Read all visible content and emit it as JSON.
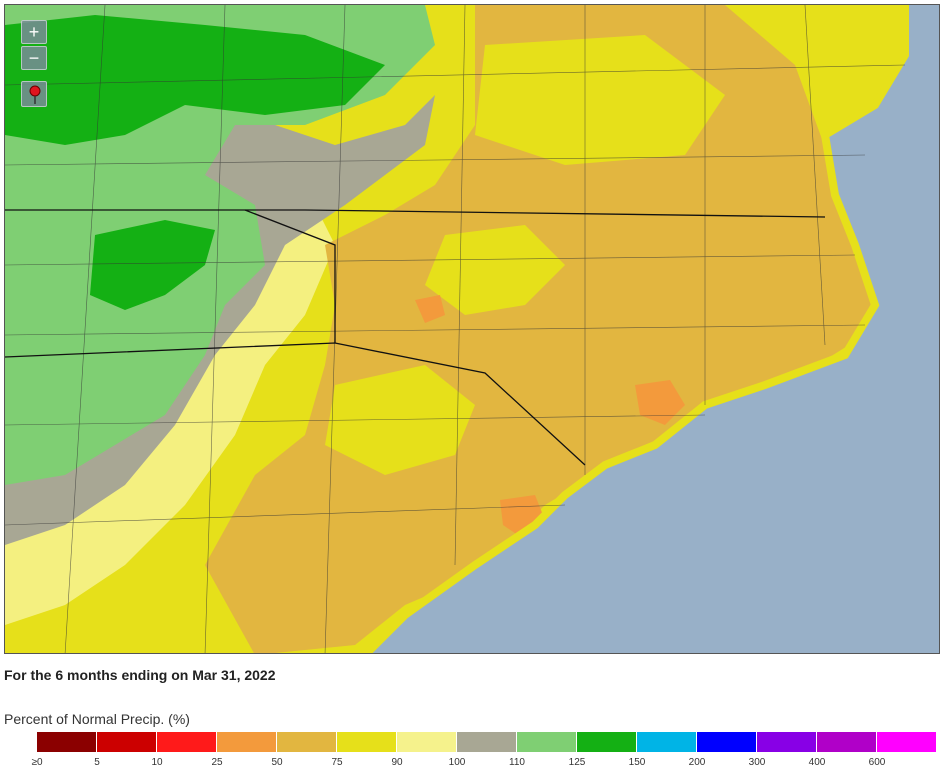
{
  "map": {
    "zoom_in_label": "+",
    "zoom_out_label": "−",
    "colors": {
      "ocean": "#98b0c8",
      "p0": "#8b0000",
      "p5": "#cc0000",
      "p10": "#ff1a1a",
      "p25": "#f39a3c",
      "p50": "#e2b640",
      "p75": "#e6e01a",
      "p90": "#f5f28c",
      "p100": "#a8a794",
      "p110": "#7fcf73",
      "p125": "#14b014",
      "p150": "#00b4e6",
      "p200": "#0000ff",
      "p300": "#8800e6",
      "p400": "#b000c8",
      "p600": "#ff00ff"
    }
  },
  "caption": "For the 6 months ending on Mar 31, 2022",
  "legend": {
    "title": "Percent of Normal Precip. (%)",
    "swatches": [
      "#8b0000",
      "#cc0000",
      "#ff1a1a",
      "#f39a3c",
      "#e2b640",
      "#e6e01a",
      "#f5f28c",
      "#a8a794",
      "#7fcf73",
      "#14b014",
      "#00b4e6",
      "#0000ff",
      "#8800e6",
      "#b000c8",
      "#ff00ff"
    ],
    "ticks": [
      "≥0",
      "5",
      "10",
      "25",
      "50",
      "75",
      "90",
      "100",
      "110",
      "125",
      "150",
      "200",
      "300",
      "400",
      "600"
    ]
  }
}
